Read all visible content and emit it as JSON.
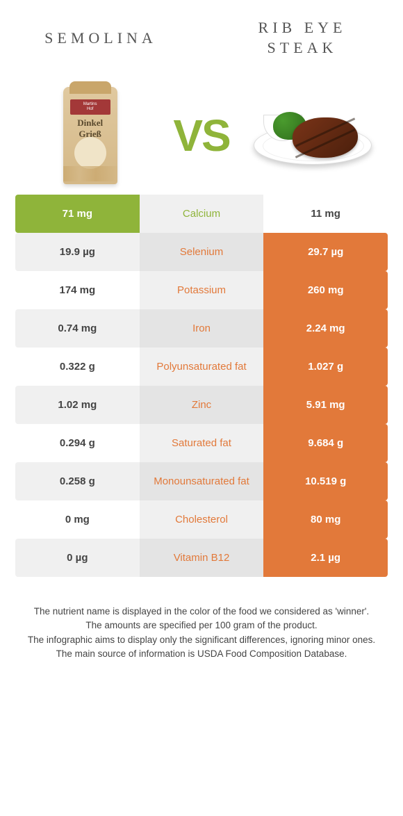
{
  "palette": {
    "green": "#8fb43a",
    "orange": "#e2793a",
    "white_text": "#ffffff",
    "row_bg_light": "#ffffff",
    "row_bg_alt": "#f0f0f0",
    "mid_bg_light": "#f0f0f0",
    "mid_bg_alt": "#e4e4e4"
  },
  "left": {
    "title": "SEMOLINA",
    "image_label": "Dinkel\nGrieß"
  },
  "right": {
    "title": "RIB EYE\nSTEAK"
  },
  "vs": "VS",
  "rows": [
    {
      "nutrient": "Calcium",
      "left": "71 mg",
      "right": "11 mg",
      "winner": "left"
    },
    {
      "nutrient": "Selenium",
      "left": "19.9 µg",
      "right": "29.7 µg",
      "winner": "right"
    },
    {
      "nutrient": "Potassium",
      "left": "174 mg",
      "right": "260 mg",
      "winner": "right"
    },
    {
      "nutrient": "Iron",
      "left": "0.74 mg",
      "right": "2.24 mg",
      "winner": "right"
    },
    {
      "nutrient": "Polyunsaturated fat",
      "left": "0.322 g",
      "right": "1.027 g",
      "winner": "right"
    },
    {
      "nutrient": "Zinc",
      "left": "1.02 mg",
      "right": "5.91 mg",
      "winner": "right"
    },
    {
      "nutrient": "Saturated fat",
      "left": "0.294 g",
      "right": "9.684 g",
      "winner": "right"
    },
    {
      "nutrient": "Monounsaturated fat",
      "left": "0.258 g",
      "right": "10.519 g",
      "winner": "right"
    },
    {
      "nutrient": "Cholesterol",
      "left": "0 mg",
      "right": "80 mg",
      "winner": "right"
    },
    {
      "nutrient": "Vitamin B12",
      "left": "0 µg",
      "right": "2.1 µg",
      "winner": "right"
    }
  ],
  "footnotes": [
    "The nutrient name is displayed in the color of the food we considered as 'winner'.",
    "The amounts are specified per 100 gram of the product.",
    "The infographic aims to display only the significant differences, ignoring minor ones.",
    "The main source of information is USDA Food Composition Database."
  ]
}
